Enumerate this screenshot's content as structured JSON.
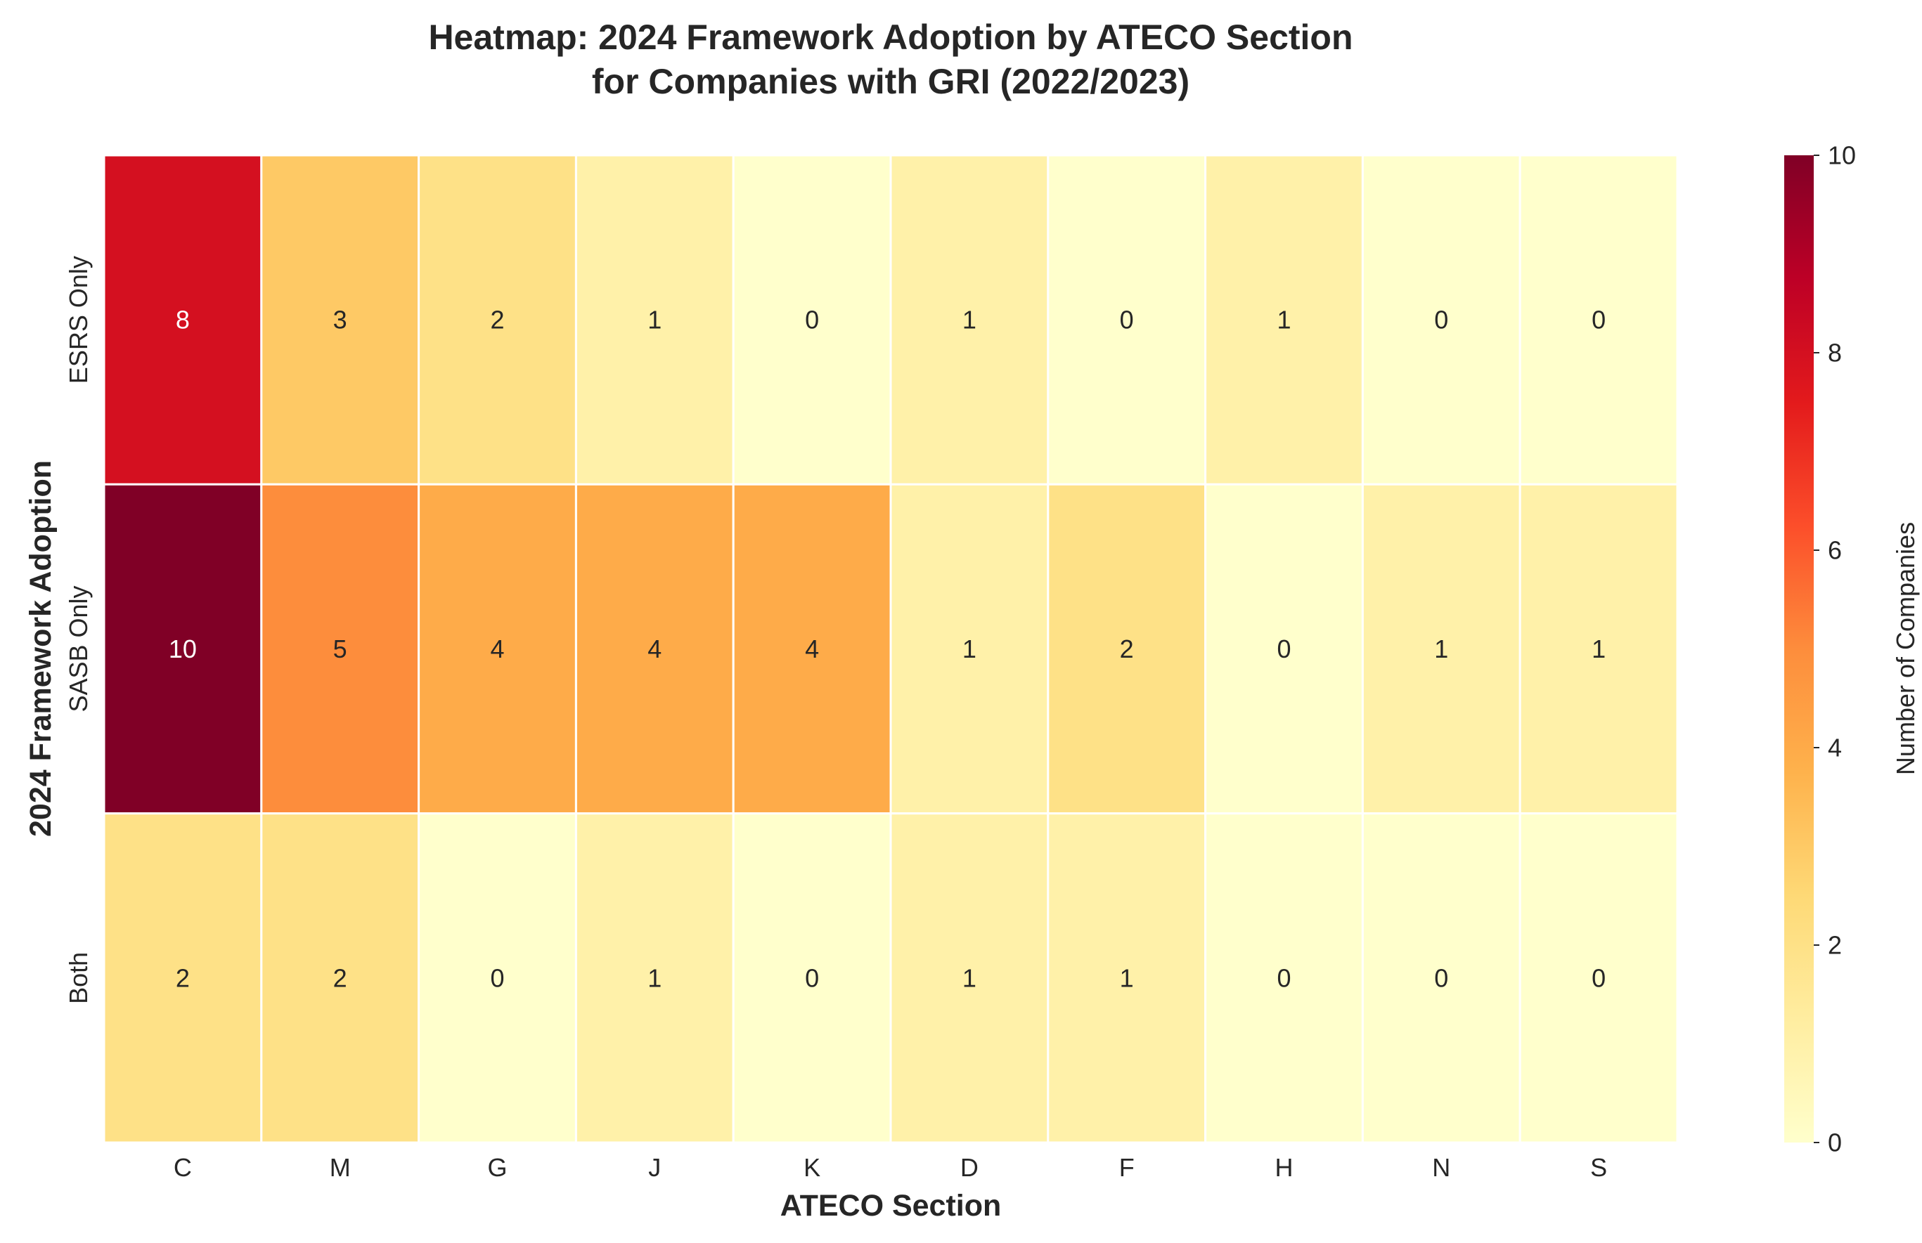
{
  "chart_data": {
    "type": "heatmap",
    "title_line1": "Heatmap: 2024 Framework Adoption by ATECO Section",
    "title_line2": "for Companies with GRI (2022/2023)",
    "xlabel": "ATECO Section",
    "ylabel": "2024 Framework Adoption",
    "x_categories": [
      "C",
      "M",
      "G",
      "J",
      "K",
      "D",
      "F",
      "H",
      "N",
      "S"
    ],
    "y_categories": [
      "ESRS Only",
      "SASB Only",
      "Both"
    ],
    "values": [
      [
        8,
        3,
        2,
        1,
        0,
        1,
        0,
        1,
        0,
        0
      ],
      [
        10,
        5,
        4,
        4,
        4,
        1,
        2,
        0,
        1,
        1
      ],
      [
        2,
        2,
        0,
        1,
        0,
        1,
        1,
        0,
        0,
        0
      ]
    ],
    "colorbar": {
      "label": "Number of Companies",
      "range": [
        0,
        10
      ],
      "ticks": [
        0,
        2,
        4,
        6,
        8,
        10
      ],
      "colormap": "YlOrRd"
    },
    "grid": false
  }
}
